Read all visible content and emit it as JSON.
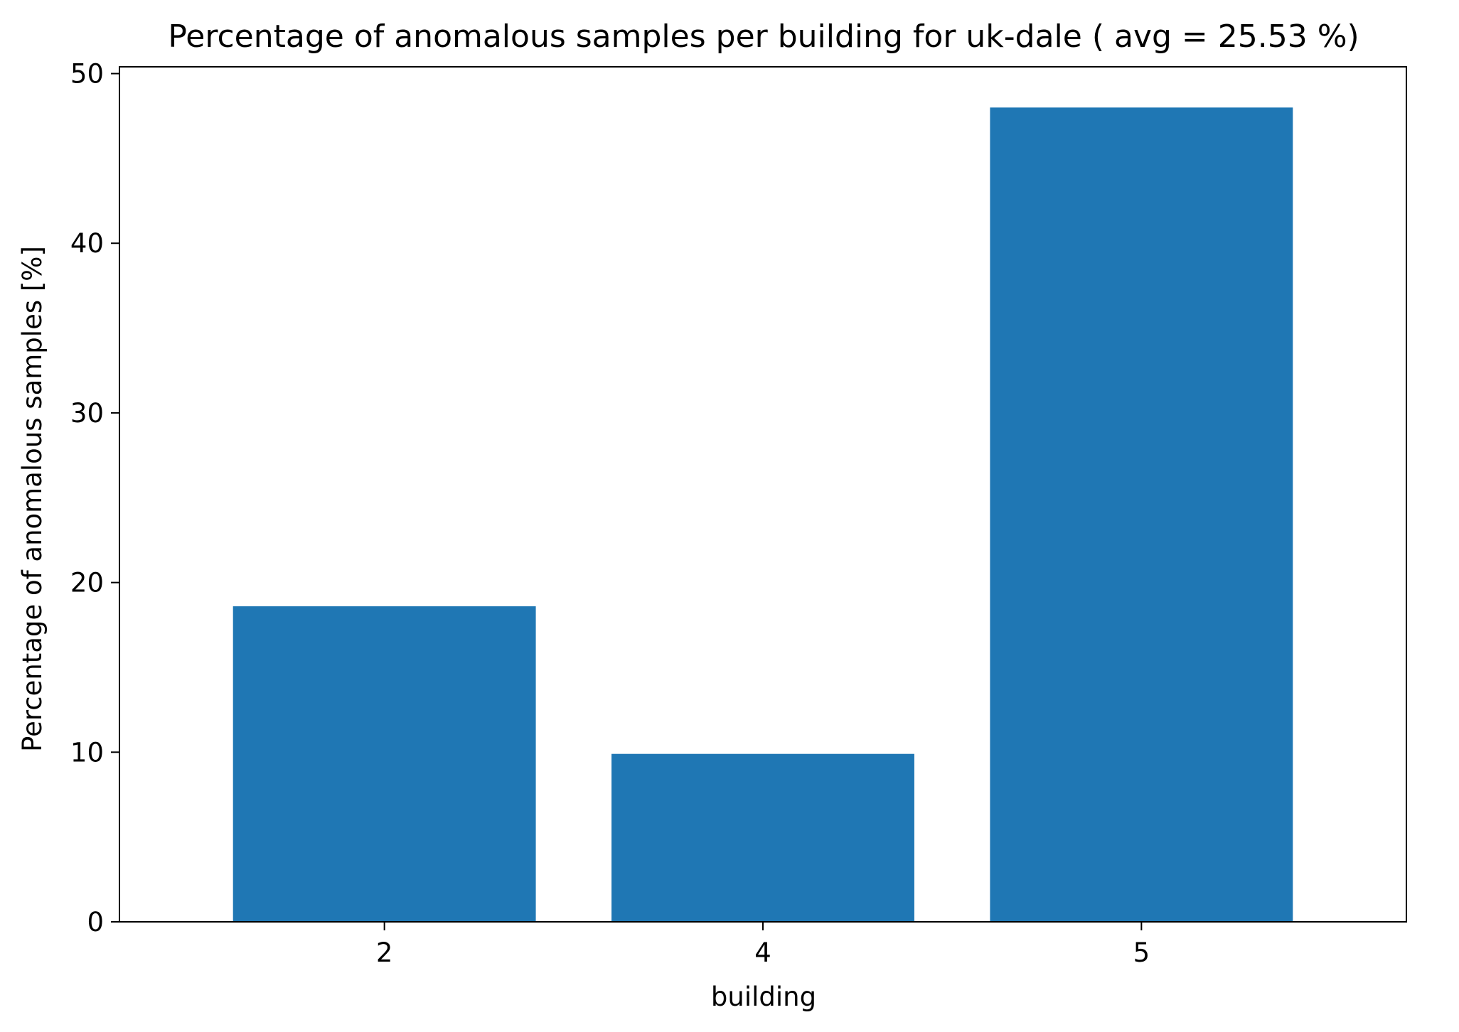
{
  "chart_data": {
    "type": "bar",
    "title": "Percentage of anomalous samples per building for uk-dale ( avg = 25.53 %)",
    "xlabel": "building",
    "ylabel": "Percentage of anomalous samples [%]",
    "categories": [
      "2",
      "4",
      "5"
    ],
    "values": [
      18.6,
      9.9,
      48.0
    ],
    "ylim": [
      0,
      50.4
    ],
    "yticks": [
      "0",
      "10",
      "20",
      "30",
      "40",
      "50"
    ],
    "bar_color": "#1f77b4",
    "grid": false,
    "legend": "none"
  }
}
